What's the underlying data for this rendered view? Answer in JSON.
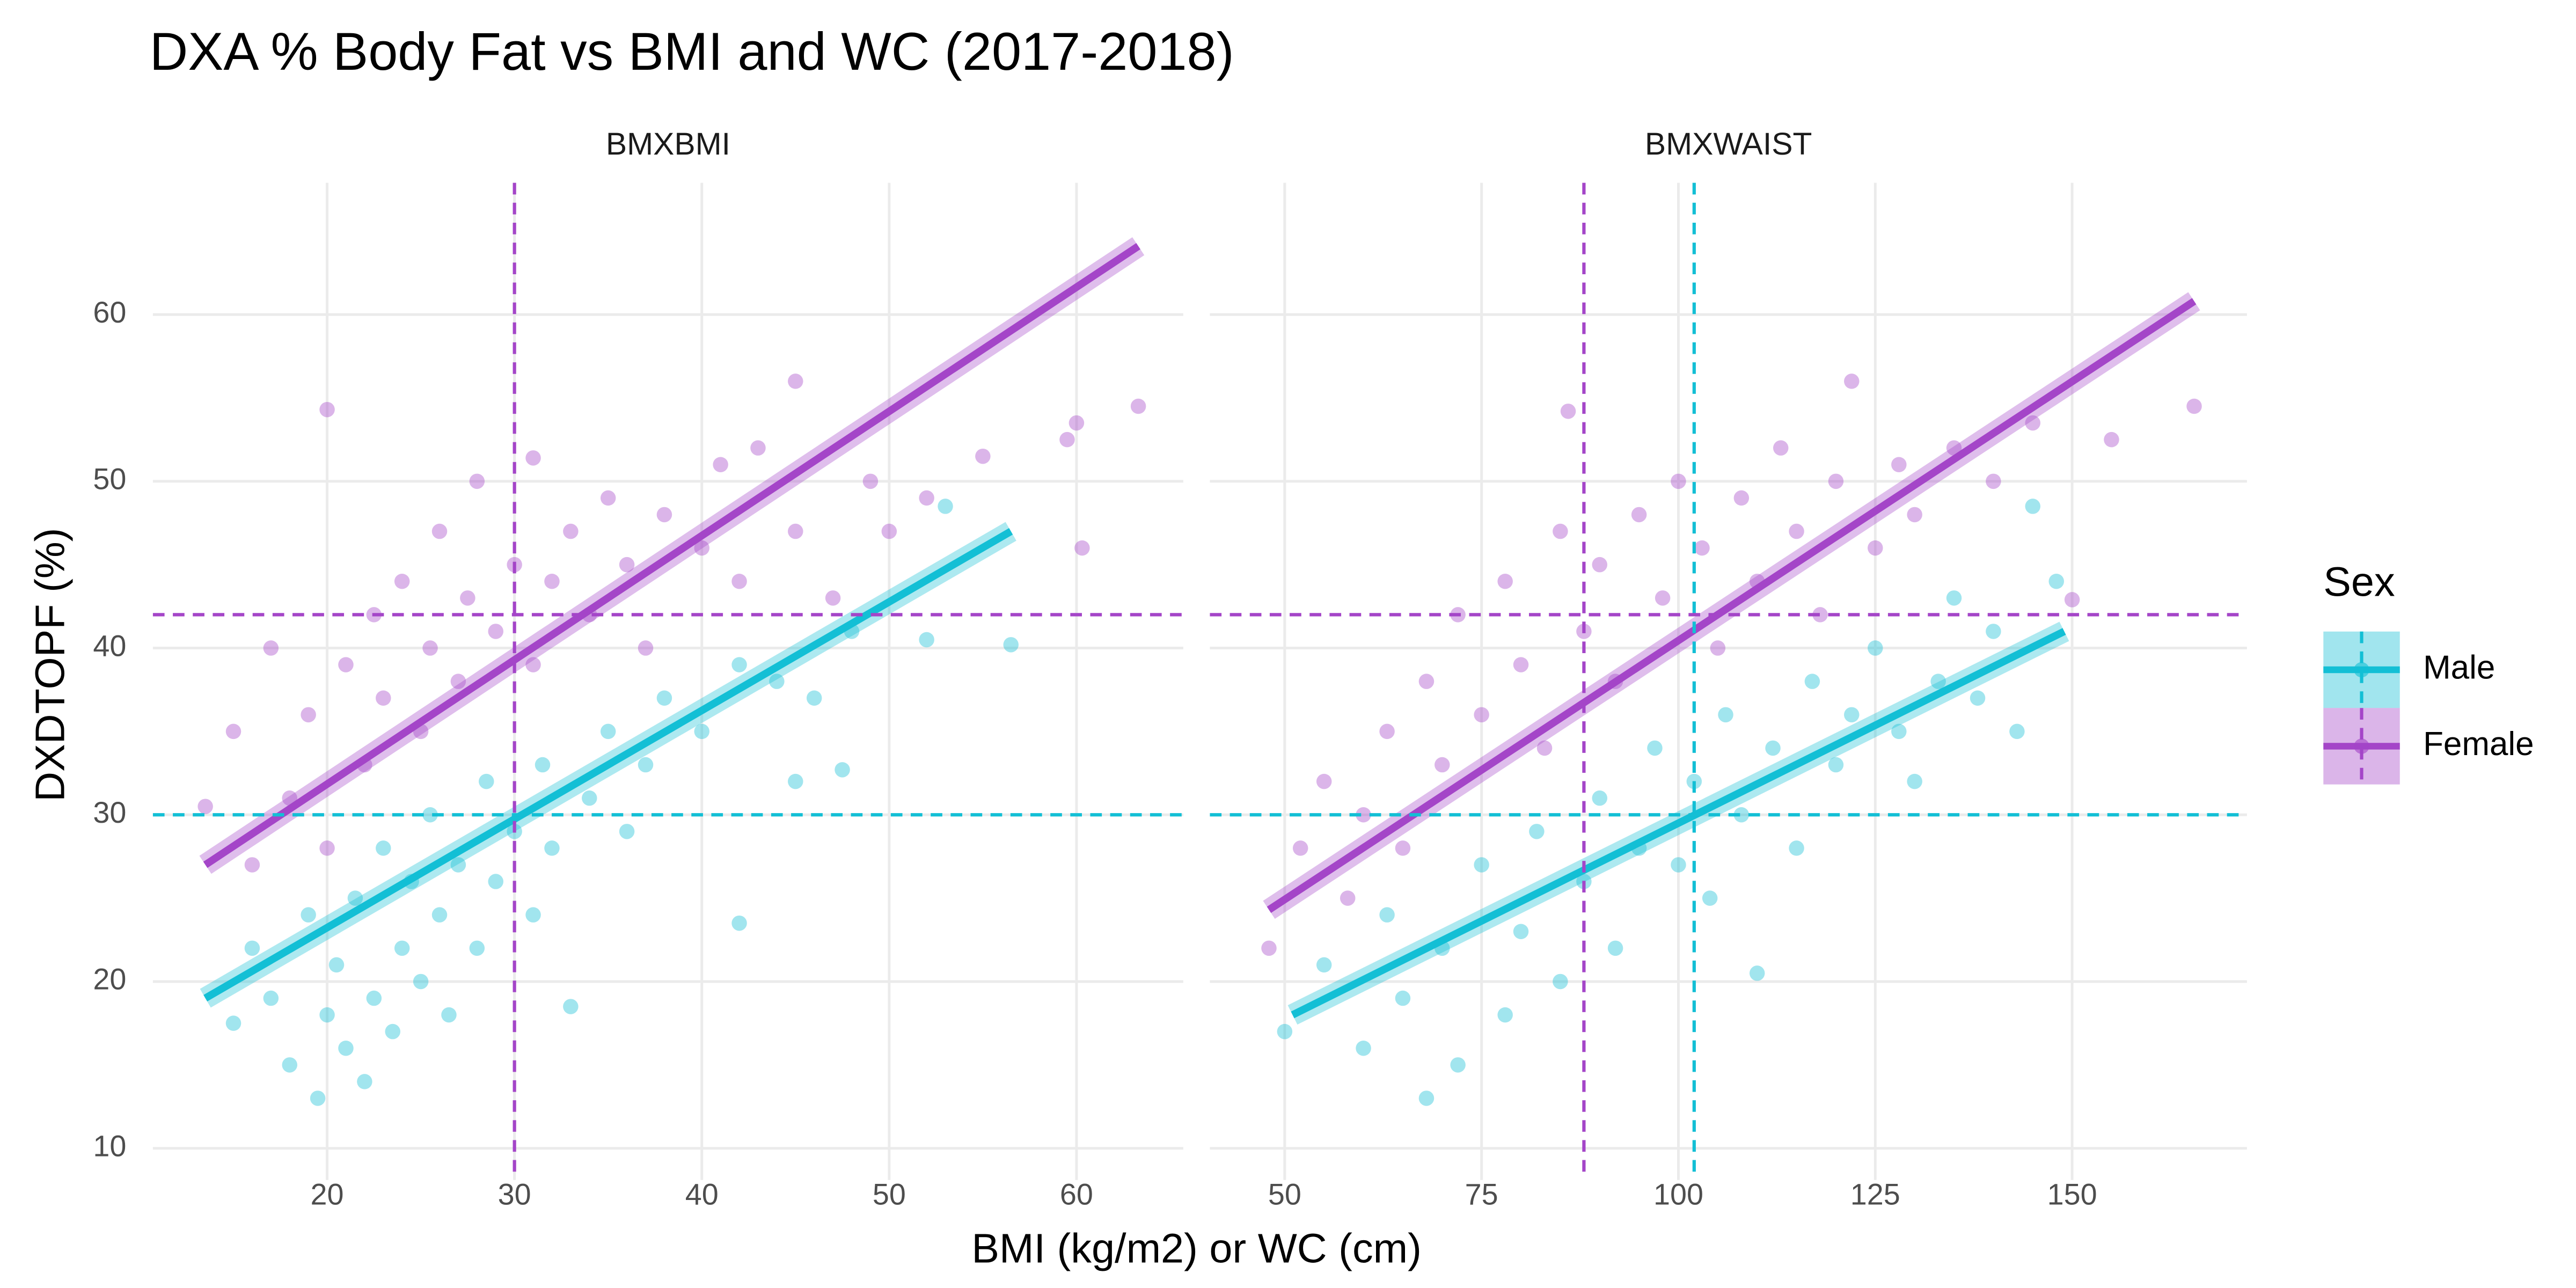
{
  "title": "DXA % Body Fat vs BMI and WC (2017-2018)",
  "x_label": "BMI (kg/m2) or WC (cm)",
  "y_label": "DXDTOPF (%)",
  "legend_title": "Sex",
  "chart_data": [
    {
      "type": "scatter",
      "facet_label": "BMXBMI",
      "xlim": [
        10.7,
        65.7
      ],
      "xticks": [
        20,
        30,
        40,
        50,
        60
      ],
      "ylim": [
        8.1,
        67.9
      ],
      "yticks": [
        10,
        20,
        30,
        40,
        50,
        60
      ],
      "grid": true,
      "vlines": [
        {
          "value": 30,
          "color": "#a445c8"
        }
      ],
      "hlines": [
        {
          "value": 42,
          "color": "#a445c8"
        },
        {
          "value": 30,
          "color": "#13bfd5"
        }
      ],
      "series": [
        {
          "name": "Male",
          "color": "#13bfd5",
          "x": [
            15,
            16,
            17,
            18,
            19,
            19.5,
            20,
            20.5,
            21,
            21.5,
            22,
            22.5,
            23,
            23.5,
            24,
            24.5,
            25,
            25.5,
            26,
            26.5,
            27,
            28,
            28.5,
            29,
            30,
            31,
            31.5,
            32,
            33,
            34,
            35,
            36,
            37,
            38,
            40,
            42,
            42,
            44,
            45,
            47.5,
            48,
            52,
            56.5,
            53,
            46
          ],
          "values": [
            17.5,
            22,
            19,
            15,
            24,
            13,
            18,
            21,
            16,
            25,
            14,
            19,
            28,
            17,
            22,
            26,
            20,
            30,
            24,
            18,
            27,
            22,
            32,
            26,
            29,
            24,
            33,
            28,
            18.5,
            31,
            35,
            29,
            33,
            37,
            35,
            23.5,
            39,
            38,
            32,
            32.7,
            41,
            40.5,
            40.2,
            48.5,
            37
          ],
          "fit": {
            "x": [
              13.5,
              56.5
            ],
            "values": [
              19,
              47
            ]
          }
        },
        {
          "name": "Female",
          "color": "#a445c8",
          "x": [
            13.5,
            15,
            16,
            17,
            18,
            19,
            20,
            20,
            21,
            22,
            22.5,
            23,
            24,
            25,
            25.5,
            26,
            27,
            27.5,
            28,
            29,
            30,
            31,
            31,
            32,
            33,
            34,
            35,
            36,
            37,
            38,
            40,
            41,
            42,
            43,
            45,
            45,
            47,
            49,
            50,
            52,
            55,
            59.5,
            60,
            60.3,
            63.3
          ],
          "values": [
            30.5,
            35,
            27,
            40,
            31,
            36,
            54.3,
            28,
            39,
            33,
            42,
            37,
            44,
            35,
            40,
            47,
            38,
            43,
            50,
            41,
            45,
            39,
            51.4,
            44,
            47,
            42,
            49,
            45,
            40,
            48,
            46,
            51,
            44,
            52,
            47,
            56,
            43,
            50,
            47,
            49,
            51.5,
            52.5,
            53.5,
            46,
            54.5
          ],
          "fit": {
            "x": [
              13.5,
              63.3
            ],
            "values": [
              27,
              64.1
            ]
          }
        }
      ]
    },
    {
      "type": "scatter",
      "facet_label": "BMXWAIST",
      "xlim": [
        40.5,
        172.2
      ],
      "xticks": [
        50,
        75,
        100,
        125,
        150
      ],
      "ylim": [
        8.1,
        67.9
      ],
      "yticks": [
        10,
        20,
        30,
        40,
        50,
        60
      ],
      "grid": true,
      "vlines": [
        {
          "value": 88,
          "color": "#a445c8"
        },
        {
          "value": 102,
          "color": "#13bfd5"
        }
      ],
      "hlines": [
        {
          "value": 42,
          "color": "#a445c8"
        },
        {
          "value": 30,
          "color": "#13bfd5"
        }
      ],
      "series": [
        {
          "name": "Male",
          "color": "#13bfd5",
          "x": [
            50,
            55,
            60,
            63,
            65,
            68,
            70,
            72,
            75,
            78,
            80,
            82,
            85,
            88,
            90,
            92,
            95,
            97,
            100,
            102,
            104,
            106,
            108,
            110,
            112,
            115,
            117,
            120,
            122,
            125,
            128,
            130,
            133,
            135,
            138,
            140,
            143,
            145,
            148
          ],
          "values": [
            17,
            21,
            16,
            24,
            19,
            13,
            22,
            15,
            27,
            18,
            23,
            29,
            20,
            26,
            31,
            22,
            28,
            34,
            27,
            32,
            25,
            36,
            30,
            20.5,
            34,
            28,
            38,
            33,
            36,
            40,
            35,
            32,
            38,
            43,
            37,
            41,
            35,
            48.5,
            44
          ],
          "fit": {
            "x": [
              51,
              149
            ],
            "values": [
              18,
              41
            ]
          }
        },
        {
          "name": "Female",
          "color": "#a445c8",
          "x": [
            48,
            52,
            55,
            58,
            60,
            63,
            65,
            68,
            70,
            72,
            75,
            78,
            80,
            83,
            85,
            86,
            88,
            90,
            92,
            95,
            98,
            100,
            103,
            105,
            108,
            110,
            113,
            115,
            118,
            120,
            122,
            125,
            128,
            130,
            135,
            140,
            145,
            150,
            155,
            165.5
          ],
          "values": [
            22,
            28,
            32,
            25,
            30,
            35,
            28,
            38,
            33,
            42,
            36,
            44,
            39,
            34,
            47,
            54.2,
            41,
            45,
            38,
            48,
            43,
            50,
            46,
            40,
            49,
            44,
            52,
            47,
            42,
            50,
            56,
            46,
            51,
            48,
            52,
            50,
            53.5,
            42.9,
            52.5,
            54.5
          ],
          "fit": {
            "x": [
              48,
              165.5
            ],
            "values": [
              24.3,
              60.8
            ]
          }
        }
      ]
    }
  ]
}
